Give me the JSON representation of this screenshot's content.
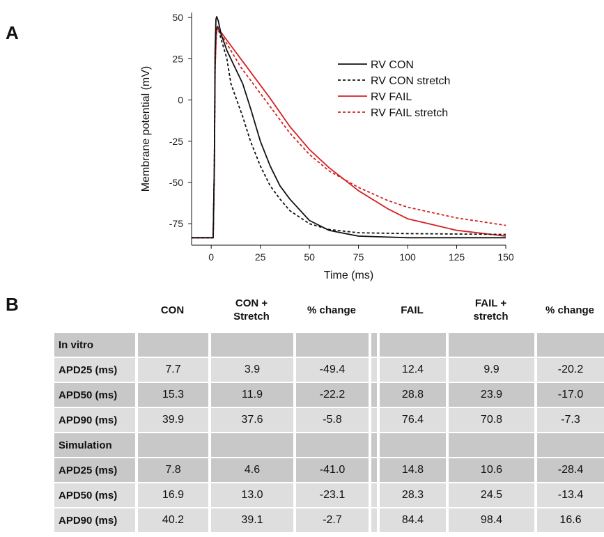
{
  "panels": {
    "a": "A",
    "b": "B"
  },
  "chart_data": {
    "type": "line",
    "xlabel": "Time (ms)",
    "ylabel": "Membrane potential (mV)",
    "xlim": [
      -10,
      150
    ],
    "ylim": [
      -88,
      53
    ],
    "xticks": [
      0,
      25,
      50,
      75,
      100,
      125,
      150
    ],
    "yticks": [
      50,
      25,
      0,
      -25,
      -50,
      -75
    ],
    "grid": false,
    "legend_position": "top-right",
    "series": [
      {
        "name": "RV CON",
        "color": "#111111",
        "dashed": false,
        "points": [
          [
            -10,
            -83.5
          ],
          [
            1,
            -83.5
          ],
          [
            1.6,
            -40
          ],
          [
            2,
            30
          ],
          [
            2.4,
            49
          ],
          [
            2.8,
            50.5
          ],
          [
            3.6,
            48
          ],
          [
            5,
            40
          ],
          [
            8,
            30
          ],
          [
            12,
            20
          ],
          [
            16,
            10
          ],
          [
            20,
            -5
          ],
          [
            25,
            -25
          ],
          [
            30,
            -40
          ],
          [
            35,
            -52
          ],
          [
            40,
            -60
          ],
          [
            50,
            -73
          ],
          [
            60,
            -79
          ],
          [
            75,
            -82.5
          ],
          [
            100,
            -83.5
          ],
          [
            150,
            -83.5
          ]
        ]
      },
      {
        "name": "RV CON stretch",
        "color": "#111111",
        "dashed": true,
        "points": [
          [
            -10,
            -83.5
          ],
          [
            1,
            -83.5
          ],
          [
            1.6,
            -40
          ],
          [
            2,
            30
          ],
          [
            2.6,
            44
          ],
          [
            3.2,
            45
          ],
          [
            5,
            37
          ],
          [
            8,
            25
          ],
          [
            10,
            10
          ],
          [
            13,
            0
          ],
          [
            16,
            -10
          ],
          [
            20,
            -25
          ],
          [
            25,
            -40
          ],
          [
            30,
            -52
          ],
          [
            35,
            -60
          ],
          [
            40,
            -67
          ],
          [
            50,
            -75
          ],
          [
            60,
            -78.5
          ],
          [
            75,
            -80.5
          ],
          [
            100,
            -81
          ],
          [
            150,
            -81.5
          ]
        ]
      },
      {
        "name": "RV FAIL",
        "color": "#d42020",
        "dashed": false,
        "points": [
          [
            -10,
            -83.5
          ],
          [
            1,
            -83.5
          ],
          [
            1.6,
            -40
          ],
          [
            2,
            20
          ],
          [
            2.6,
            40
          ],
          [
            3.2,
            44
          ],
          [
            5,
            41
          ],
          [
            10,
            33
          ],
          [
            15,
            25
          ],
          [
            20,
            17
          ],
          [
            25,
            9
          ],
          [
            30,
            1
          ],
          [
            40,
            -16
          ],
          [
            50,
            -30
          ],
          [
            60,
            -41
          ],
          [
            75,
            -55
          ],
          [
            90,
            -66
          ],
          [
            100,
            -72
          ],
          [
            125,
            -79
          ],
          [
            150,
            -82.5
          ]
        ]
      },
      {
        "name": "RV FAIL stretch",
        "color": "#d42020",
        "dashed": true,
        "points": [
          [
            -10,
            -83.5
          ],
          [
            1,
            -83.5
          ],
          [
            1.6,
            -40
          ],
          [
            2,
            20
          ],
          [
            2.6,
            40
          ],
          [
            3.2,
            44
          ],
          [
            5,
            40
          ],
          [
            10,
            30
          ],
          [
            15,
            20
          ],
          [
            20,
            12
          ],
          [
            25,
            4
          ],
          [
            30,
            -4
          ],
          [
            40,
            -20
          ],
          [
            50,
            -33
          ],
          [
            60,
            -43
          ],
          [
            75,
            -53
          ],
          [
            90,
            -61
          ],
          [
            100,
            -65
          ],
          [
            125,
            -71.5
          ],
          [
            150,
            -76
          ]
        ]
      }
    ]
  },
  "table": {
    "headers": [
      "",
      "CON",
      "CON +\nStretch",
      "% change",
      "",
      "FAIL",
      "FAIL +\nstretch",
      "% change"
    ],
    "rows": [
      {
        "kind": "section",
        "label": "In vitro",
        "values": [
          "",
          "",
          "",
          "",
          "",
          "",
          ""
        ]
      },
      {
        "kind": "light",
        "label": "APD25 (ms)",
        "values": [
          "7.7",
          "3.9",
          "-49.4",
          "",
          "12.4",
          "9.9",
          "-20.2"
        ]
      },
      {
        "kind": "dark",
        "label": "APD50 (ms)",
        "values": [
          "15.3",
          "11.9",
          "-22.2",
          "",
          "28.8",
          "23.9",
          "-17.0"
        ]
      },
      {
        "kind": "light",
        "label": "APD90 (ms)",
        "values": [
          "39.9",
          "37.6",
          "-5.8",
          "",
          "76.4",
          "70.8",
          "-7.3"
        ]
      },
      {
        "kind": "section",
        "label": "Simulation",
        "values": [
          "",
          "",
          "",
          "",
          "",
          "",
          ""
        ]
      },
      {
        "kind": "dark",
        "label": "APD25 (ms)",
        "values": [
          "7.8",
          "4.6",
          "-41.0",
          "",
          "14.8",
          "10.6",
          "-28.4"
        ]
      },
      {
        "kind": "light",
        "label": "APD50 (ms)",
        "values": [
          "16.9",
          "13.0",
          "-23.1",
          "",
          "28.3",
          "24.5",
          "-13.4"
        ]
      },
      {
        "kind": "light",
        "label": "APD90 (ms)",
        "values": [
          "40.2",
          "39.1",
          "-2.7",
          "",
          "84.4",
          "98.4",
          "16.6"
        ]
      }
    ]
  }
}
